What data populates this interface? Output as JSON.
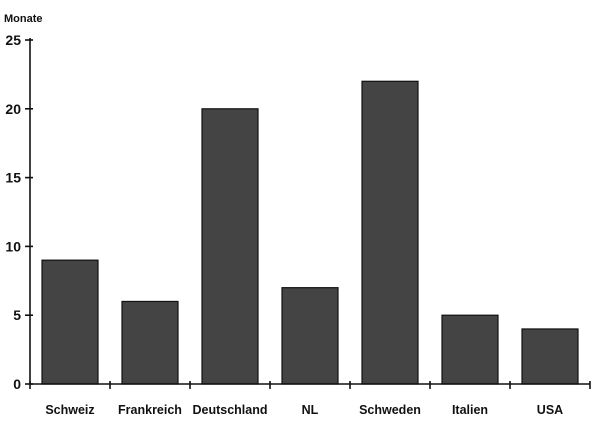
{
  "chart_data": {
    "type": "bar",
    "title": "",
    "xlabel": "",
    "ylabel": "Monate",
    "ylim": [
      0,
      25
    ],
    "yticks": [
      0,
      5,
      10,
      15,
      20,
      25
    ],
    "categories": [
      "Schweiz",
      "Frankreich",
      "Deutschland",
      "NL",
      "Schweden",
      "Italien",
      "USA"
    ],
    "values": [
      9,
      6,
      20,
      7,
      22,
      5,
      4
    ],
    "grid": false,
    "legend": "none",
    "colors": {
      "bar": "#444444",
      "axis": "#111111"
    }
  }
}
